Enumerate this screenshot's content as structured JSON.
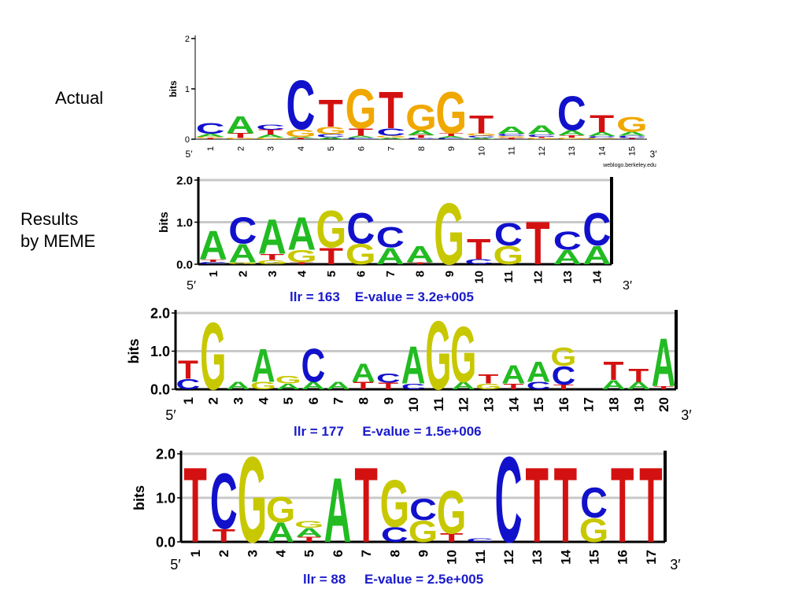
{
  "labels": {
    "actual": "Actual",
    "results_line1": "Results",
    "results_line2": "by MEME"
  },
  "colors": {
    "A": "#22bb22",
    "C": "#1111cc",
    "G": "#f0a800",
    "T": "#d41111"
  },
  "chart_data": [
    {
      "type": "sequence-logo",
      "ylabel": "bits",
      "yticks": [
        "0",
        "1",
        "2"
      ],
      "ylim": [
        0,
        2
      ],
      "start_label": "5′",
      "end_label": "3′",
      "credit": "weblogo.berkeley.edu",
      "stats": "",
      "colors": {
        "A": "#22bb22",
        "C": "#1111cc",
        "G": "#f0a800",
        "T": "#d41111"
      },
      "positions": [
        {
          "pos": "1",
          "letters": [
            {
              "b": "T",
              "h": 0.02
            },
            {
              "b": "G",
              "h": 0.03
            },
            {
              "b": "A",
              "h": 0.06
            },
            {
              "b": "C",
              "h": 0.22
            }
          ]
        },
        {
          "pos": "2",
          "letters": [
            {
              "b": "G",
              "h": 0.02
            },
            {
              "b": "T",
              "h": 0.1
            },
            {
              "b": "A",
              "h": 0.35
            }
          ]
        },
        {
          "pos": "3",
          "letters": [
            {
              "b": "G",
              "h": 0.03
            },
            {
              "b": "A",
              "h": 0.06
            },
            {
              "b": "T",
              "h": 0.1
            },
            {
              "b": "C",
              "h": 0.1
            }
          ]
        },
        {
          "pos": "4",
          "letters": [
            {
              "b": "T",
              "h": 0.02
            },
            {
              "b": "A",
              "h": 0.03
            },
            {
              "b": "G",
              "h": 0.15
            },
            {
              "b": "C",
              "h": 1.0
            }
          ]
        },
        {
          "pos": "5",
          "letters": [
            {
              "b": "A",
              "h": 0.04
            },
            {
              "b": "C",
              "h": 0.06
            },
            {
              "b": "G",
              "h": 0.15
            },
            {
              "b": "T",
              "h": 0.55
            }
          ]
        },
        {
          "pos": "6",
          "letters": [
            {
              "b": "C",
              "h": 0.03
            },
            {
              "b": "A",
              "h": 0.04
            },
            {
              "b": "T",
              "h": 0.15
            },
            {
              "b": "G",
              "h": 0.8
            }
          ]
        },
        {
          "pos": "7",
          "letters": [
            {
              "b": "A",
              "h": 0.03
            },
            {
              "b": "G",
              "h": 0.04
            },
            {
              "b": "C",
              "h": 0.15
            },
            {
              "b": "T",
              "h": 0.75
            }
          ]
        },
        {
          "pos": "8",
          "letters": [
            {
              "b": "C",
              "h": 0.02
            },
            {
              "b": "T",
              "h": 0.06
            },
            {
              "b": "A",
              "h": 0.1
            },
            {
              "b": "G",
              "h": 0.52
            }
          ]
        },
        {
          "pos": "9",
          "letters": [
            {
              "b": "C",
              "h": 0.02
            },
            {
              "b": "A",
              "h": 0.04
            },
            {
              "b": "T",
              "h": 0.06
            },
            {
              "b": "G",
              "h": 0.85
            }
          ]
        },
        {
          "pos": "10",
          "letters": [
            {
              "b": "A",
              "h": 0.03
            },
            {
              "b": "C",
              "h": 0.04
            },
            {
              "b": "G",
              "h": 0.05
            },
            {
              "b": "T",
              "h": 0.36
            }
          ]
        },
        {
          "pos": "11",
          "letters": [
            {
              "b": "T",
              "h": 0.03
            },
            {
              "b": "G",
              "h": 0.03
            },
            {
              "b": "C",
              "h": 0.05
            },
            {
              "b": "A",
              "h": 0.14
            }
          ]
        },
        {
          "pos": "12",
          "letters": [
            {
              "b": "G",
              "h": 0.02
            },
            {
              "b": "T",
              "h": 0.03
            },
            {
              "b": "C",
              "h": 0.05
            },
            {
              "b": "A",
              "h": 0.18
            }
          ]
        },
        {
          "pos": "13",
          "letters": [
            {
              "b": "G",
              "h": 0.03
            },
            {
              "b": "T",
              "h": 0.05
            },
            {
              "b": "A",
              "h": 0.1
            },
            {
              "b": "C",
              "h": 0.7
            }
          ]
        },
        {
          "pos": "14",
          "letters": [
            {
              "b": "G",
              "h": 0.02
            },
            {
              "b": "C",
              "h": 0.04
            },
            {
              "b": "A",
              "h": 0.08
            },
            {
              "b": "T",
              "h": 0.35
            }
          ]
        },
        {
          "pos": "15",
          "letters": [
            {
              "b": "T",
              "h": 0.02
            },
            {
              "b": "C",
              "h": 0.05
            },
            {
              "b": "A",
              "h": 0.08
            },
            {
              "b": "G",
              "h": 0.3
            }
          ]
        }
      ]
    },
    {
      "type": "sequence-logo",
      "ylabel": "bits",
      "yticks": [
        "0.0",
        "1.0",
        "2.0"
      ],
      "ylim": [
        0,
        2
      ],
      "start_label": "5′",
      "end_label": "3′",
      "credit": "",
      "stats": "llr = 163    E-value = 3.2e+005",
      "colors": {
        "A": "#22bb22",
        "C": "#1111cc",
        "G": "#c8c800",
        "T": "#d41111"
      },
      "positions": [
        {
          "pos": "1",
          "letters": [
            {
              "b": "C",
              "h": 0.06
            },
            {
              "b": "T",
              "h": 0.06
            },
            {
              "b": "A",
              "h": 0.7
            }
          ]
        },
        {
          "pos": "2",
          "letters": [
            {
              "b": "G",
              "h": 0.05
            },
            {
              "b": "A",
              "h": 0.45
            },
            {
              "b": "C",
              "h": 0.65
            }
          ]
        },
        {
          "pos": "3",
          "letters": [
            {
              "b": "G",
              "h": 0.1
            },
            {
              "b": "T",
              "h": 0.15
            },
            {
              "b": "A",
              "h": 0.85
            }
          ]
        },
        {
          "pos": "4",
          "letters": [
            {
              "b": "T",
              "h": 0.05
            },
            {
              "b": "G",
              "h": 0.3
            },
            {
              "b": "A",
              "h": 0.8
            }
          ]
        },
        {
          "pos": "5",
          "letters": [
            {
              "b": "T",
              "h": 0.4
            },
            {
              "b": "G",
              "h": 0.9
            }
          ]
        },
        {
          "pos": "6",
          "letters": [
            {
              "b": "G",
              "h": 0.5
            },
            {
              "b": "C",
              "h": 0.75
            }
          ]
        },
        {
          "pos": "7",
          "letters": [
            {
              "b": "A",
              "h": 0.4
            },
            {
              "b": "C",
              "h": 0.5
            }
          ]
        },
        {
          "pos": "8",
          "letters": [
            {
              "b": "T",
              "h": 0.05
            },
            {
              "b": "A",
              "h": 0.4
            }
          ]
        },
        {
          "pos": "9",
          "letters": [
            {
              "b": "G",
              "h": 1.5
            }
          ]
        },
        {
          "pos": "10",
          "letters": [
            {
              "b": "C",
              "h": 0.12
            },
            {
              "b": "T",
              "h": 0.5
            }
          ]
        },
        {
          "pos": "11",
          "letters": [
            {
              "b": "G",
              "h": 0.45
            },
            {
              "b": "C",
              "h": 0.55
            }
          ]
        },
        {
          "pos": "12",
          "letters": [
            {
              "b": "T",
              "h": 1.05
            }
          ]
        },
        {
          "pos": "13",
          "letters": [
            {
              "b": "A",
              "h": 0.35
            },
            {
              "b": "C",
              "h": 0.45
            }
          ]
        },
        {
          "pos": "14",
          "letters": [
            {
              "b": "A",
              "h": 0.45
            },
            {
              "b": "C",
              "h": 0.8
            }
          ]
        }
      ]
    },
    {
      "type": "sequence-logo",
      "ylabel": "bits",
      "yticks": [
        "0.0",
        "1.0",
        "2.0"
      ],
      "ylim": [
        0,
        2
      ],
      "start_label": "5′",
      "end_label": "3′",
      "credit": "",
      "stats": "llr = 177     E-value = 1.5e+006",
      "colors": {
        "A": "#22bb22",
        "C": "#1111cc",
        "G": "#c8c800",
        "T": "#d41111"
      },
      "positions": [
        {
          "pos": "1",
          "letters": [
            {
              "b": "C",
              "h": 0.28
            },
            {
              "b": "T",
              "h": 0.5
            }
          ]
        },
        {
          "pos": "2",
          "letters": [
            {
              "b": "G",
              "h": 1.8
            }
          ]
        },
        {
          "pos": "3",
          "letters": [
            {
              "b": "A",
              "h": 0.2
            }
          ]
        },
        {
          "pos": "4",
          "letters": [
            {
              "b": "G",
              "h": 0.2
            },
            {
              "b": "A",
              "h": 0.9
            }
          ]
        },
        {
          "pos": "5",
          "letters": [
            {
              "b": "A",
              "h": 0.15
            },
            {
              "b": "G",
              "h": 0.2
            }
          ]
        },
        {
          "pos": "6",
          "letters": [
            {
              "b": "A",
              "h": 0.2
            },
            {
              "b": "C",
              "h": 0.9
            }
          ]
        },
        {
          "pos": "7",
          "letters": [
            {
              "b": "A",
              "h": 0.2
            }
          ]
        },
        {
          "pos": "8",
          "letters": [
            {
              "b": "T",
              "h": 0.2
            },
            {
              "b": "A",
              "h": 0.5
            }
          ]
        },
        {
          "pos": "9",
          "letters": [
            {
              "b": "T",
              "h": 0.18
            },
            {
              "b": "C",
              "h": 0.25
            }
          ]
        },
        {
          "pos": "10",
          "letters": [
            {
              "b": "C",
              "h": 0.15
            },
            {
              "b": "A",
              "h": 1.0
            }
          ]
        },
        {
          "pos": "11",
          "letters": [
            {
              "b": "G",
              "h": 1.85
            }
          ]
        },
        {
          "pos": "12",
          "letters": [
            {
              "b": "A",
              "h": 0.2
            },
            {
              "b": "G",
              "h": 1.5
            }
          ]
        },
        {
          "pos": "13",
          "letters": [
            {
              "b": "G",
              "h": 0.15
            },
            {
              "b": "T",
              "h": 0.25
            }
          ]
        },
        {
          "pos": "14",
          "letters": [
            {
              "b": "T",
              "h": 0.15
            },
            {
              "b": "A",
              "h": 0.5
            }
          ]
        },
        {
          "pos": "15",
          "letters": [
            {
              "b": "C",
              "h": 0.2
            },
            {
              "b": "A",
              "h": 0.55
            }
          ]
        },
        {
          "pos": "16",
          "letters": [
            {
              "b": "T",
              "h": 0.12
            },
            {
              "b": "C",
              "h": 0.5
            },
            {
              "b": "G",
              "h": 0.5
            }
          ]
        },
        {
          "pos": "17",
          "letters": []
        },
        {
          "pos": "18",
          "letters": [
            {
              "b": "A",
              "h": 0.25
            },
            {
              "b": "T",
              "h": 0.5
            }
          ]
        },
        {
          "pos": "19",
          "letters": [
            {
              "b": "A",
              "h": 0.2
            },
            {
              "b": "T",
              "h": 0.35
            }
          ]
        },
        {
          "pos": "20",
          "letters": [
            {
              "b": "T",
              "h": 0.08
            },
            {
              "b": "A",
              "h": 1.3
            }
          ]
        }
      ]
    },
    {
      "type": "sequence-logo",
      "ylabel": "bits",
      "yticks": [
        "0.0",
        "1.0",
        "2.0"
      ],
      "ylim": [
        0,
        2
      ],
      "start_label": "5′",
      "end_label": "3′",
      "credit": "",
      "stats": "llr = 88     E-value = 2.5e+005",
      "colors": {
        "A": "#22bb22",
        "C": "#1111cc",
        "G": "#c8c800",
        "T": "#d41111"
      },
      "positions": [
        {
          "pos": "1",
          "letters": [
            {
              "b": "T",
              "h": 1.75
            }
          ]
        },
        {
          "pos": "2",
          "letters": [
            {
              "b": "T",
              "h": 0.3
            },
            {
              "b": "C",
              "h": 1.3
            }
          ]
        },
        {
          "pos": "3",
          "letters": [
            {
              "b": "G",
              "h": 2.0
            }
          ]
        },
        {
          "pos": "4",
          "letters": [
            {
              "b": "A",
              "h": 0.45
            },
            {
              "b": "G",
              "h": 0.6
            }
          ]
        },
        {
          "pos": "5",
          "letters": [
            {
              "b": "T",
              "h": 0.12
            },
            {
              "b": "A",
              "h": 0.2
            },
            {
              "b": "G",
              "h": 0.15
            }
          ]
        },
        {
          "pos": "6",
          "letters": [
            {
              "b": "A",
              "h": 1.5
            }
          ]
        },
        {
          "pos": "7",
          "letters": [
            {
              "b": "T",
              "h": 1.75
            }
          ]
        },
        {
          "pos": "8",
          "letters": [
            {
              "b": "C",
              "h": 0.35
            },
            {
              "b": "G",
              "h": 1.1
            }
          ]
        },
        {
          "pos": "9",
          "letters": [
            {
              "b": "G",
              "h": 0.5
            },
            {
              "b": "C",
              "h": 0.5
            }
          ]
        },
        {
          "pos": "10",
          "letters": [
            {
              "b": "T",
              "h": 0.2
            },
            {
              "b": "G",
              "h": 1.0
            }
          ]
        },
        {
          "pos": "11",
          "letters": [
            {
              "b": "C",
              "h": 0.08
            }
          ]
        },
        {
          "pos": "12",
          "letters": [
            {
              "b": "C",
              "h": 2.0
            }
          ]
        },
        {
          "pos": "13",
          "letters": [
            {
              "b": "T",
              "h": 1.75
            }
          ]
        },
        {
          "pos": "14",
          "letters": [
            {
              "b": "T",
              "h": 1.75
            }
          ]
        },
        {
          "pos": "15",
          "letters": [
            {
              "b": "G",
              "h": 0.55
            },
            {
              "b": "C",
              "h": 0.7
            }
          ]
        },
        {
          "pos": "16",
          "letters": [
            {
              "b": "T",
              "h": 1.75
            }
          ]
        },
        {
          "pos": "17",
          "letters": [
            {
              "b": "T",
              "h": 1.75
            }
          ]
        }
      ]
    }
  ]
}
